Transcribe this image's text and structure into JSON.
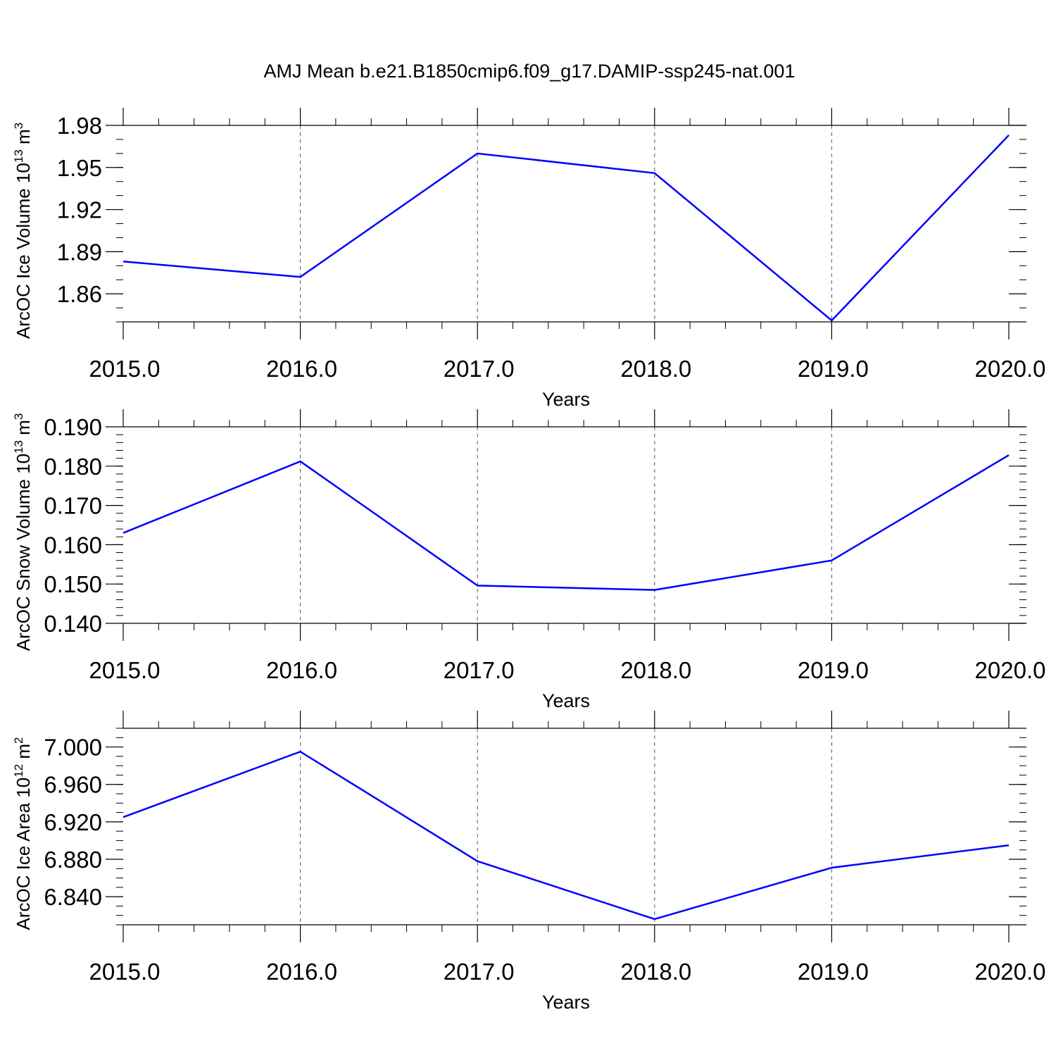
{
  "figure": {
    "title": "AMJ Mean b.e21.B1850cmip6.f09_g17.DAMIP-ssp245-nat.001"
  },
  "chart_data": [
    {
      "type": "line",
      "title": "",
      "xlabel": "Years",
      "ylabel": "ArcOC Ice Volume 10",
      "ylabel_sup": "13",
      "ylabel_unit": "m",
      "ylabel_unit_sup": "3",
      "x": [
        2015,
        2016,
        2017,
        2018,
        2019,
        2020
      ],
      "x_tick_labels": [
        "2015.0",
        "2016.0",
        "2017.0",
        "2018.0",
        "2019.0",
        "2020.0"
      ],
      "xlim": [
        2015,
        2020
      ],
      "ylim": [
        1.84,
        1.98
      ],
      "y_ticks": [
        1.86,
        1.89,
        1.92,
        1.95,
        1.98
      ],
      "y_tick_labels": [
        "1.86",
        "1.89",
        "1.92",
        "1.95",
        "1.98"
      ],
      "y_minor_step": 0.01,
      "series": [
        {
          "values": [
            1.883,
            1.872,
            1.96,
            1.946,
            1.841,
            1.973
          ],
          "color": "#0000ff"
        }
      ],
      "grid": "vertical dashed at major x ticks"
    },
    {
      "type": "line",
      "title": "",
      "xlabel": "Years",
      "ylabel": "ArcOC Snow Volume 10",
      "ylabel_sup": "13",
      "ylabel_unit": "m",
      "ylabel_unit_sup": "3",
      "x": [
        2015,
        2016,
        2017,
        2018,
        2019,
        2020
      ],
      "x_tick_labels": [
        "2015.0",
        "2016.0",
        "2017.0",
        "2018.0",
        "2019.0",
        "2020.0"
      ],
      "xlim": [
        2015,
        2020
      ],
      "ylim": [
        0.14,
        0.19
      ],
      "y_ticks": [
        0.14,
        0.15,
        0.16,
        0.17,
        0.18,
        0.19
      ],
      "y_tick_labels": [
        "0.140",
        "0.150",
        "0.160",
        "0.170",
        "0.180",
        "0.190"
      ],
      "y_minor_step": 0.002,
      "series": [
        {
          "values": [
            0.163,
            0.1812,
            0.1496,
            0.1485,
            0.156,
            0.1828
          ],
          "color": "#0000ff"
        }
      ],
      "grid": "vertical dashed at major x ticks"
    },
    {
      "type": "line",
      "title": "",
      "xlabel": "Years",
      "ylabel": "ArcOC Ice Area 10",
      "ylabel_sup": "12",
      "ylabel_unit": "m",
      "ylabel_unit_sup": "2",
      "x": [
        2015,
        2016,
        2017,
        2018,
        2019,
        2020
      ],
      "x_tick_labels": [
        "2015.0",
        "2016.0",
        "2017.0",
        "2018.0",
        "2019.0",
        "2020.0"
      ],
      "xlim": [
        2015,
        2020
      ],
      "ylim": [
        6.81,
        7.02
      ],
      "y_ticks": [
        6.84,
        6.88,
        6.92,
        6.96,
        7.0
      ],
      "y_tick_labels": [
        "6.840",
        "6.880",
        "6.920",
        "6.960",
        "7.000"
      ],
      "y_minor_step": 0.01,
      "series": [
        {
          "values": [
            6.925,
            6.995,
            6.878,
            6.816,
            6.871,
            6.895
          ],
          "color": "#0000ff"
        }
      ],
      "grid": "vertical dashed at major x ticks"
    }
  ]
}
